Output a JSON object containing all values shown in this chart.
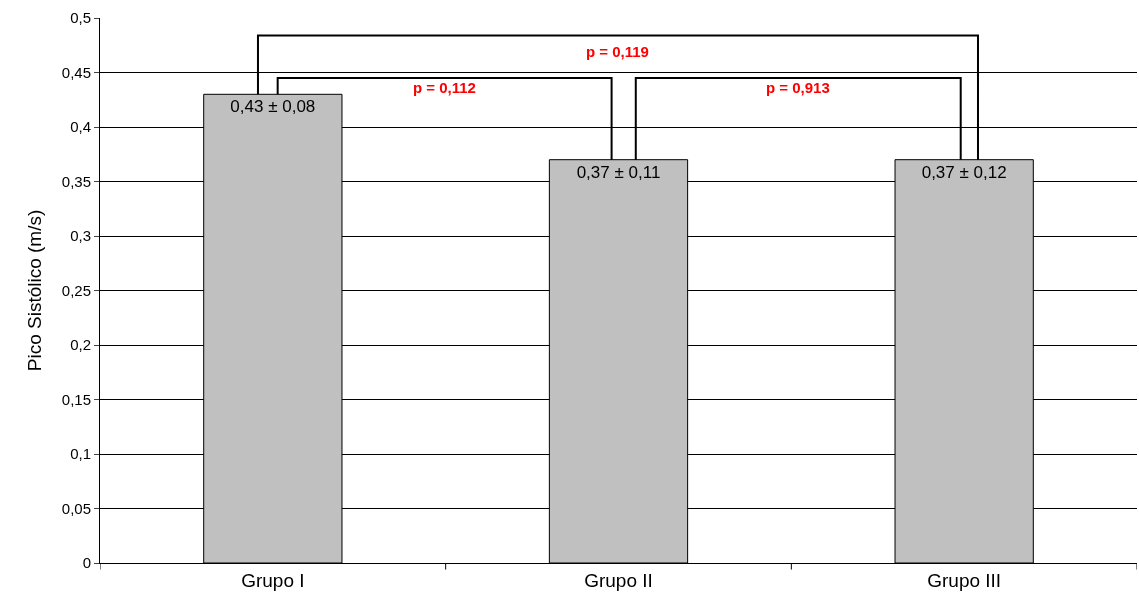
{
  "chart_data": {
    "type": "bar",
    "ylabel": "Pico Sistólico (m/s)",
    "categories": [
      "Grupo I",
      "Grupo II",
      "Grupo III"
    ],
    "values": [
      0.43,
      0.37,
      0.37
    ],
    "value_labels": [
      "0,43 ± 0,08",
      "0,37 ± 0,11",
      "0,37 ± 0,12"
    ],
    "color": "#c0c0c0",
    "ylim": [
      0,
      0.5
    ],
    "yticks": [
      0,
      {
        "value": 0.05,
        "label": "0,05"
      },
      {
        "value": 0.1,
        "label": "0,1"
      },
      {
        "value": 0.15,
        "label": "0,15"
      },
      {
        "value": 0.2,
        "label": "0,2"
      },
      {
        "value": 0.25,
        "label": "0,25"
      },
      {
        "value": 0.3,
        "label": "0,3"
      },
      {
        "value": 0.35,
        "label": "0,35"
      },
      {
        "value": 0.4,
        "label": "0,4"
      },
      {
        "value": 0.45,
        "label": "0,45"
      },
      {
        "value": 0.5,
        "label": "0,5"
      }
    ],
    "grid": "y",
    "annotations": [
      "p = 0,119",
      "p = 0,112",
      "p = 0,913"
    ]
  }
}
